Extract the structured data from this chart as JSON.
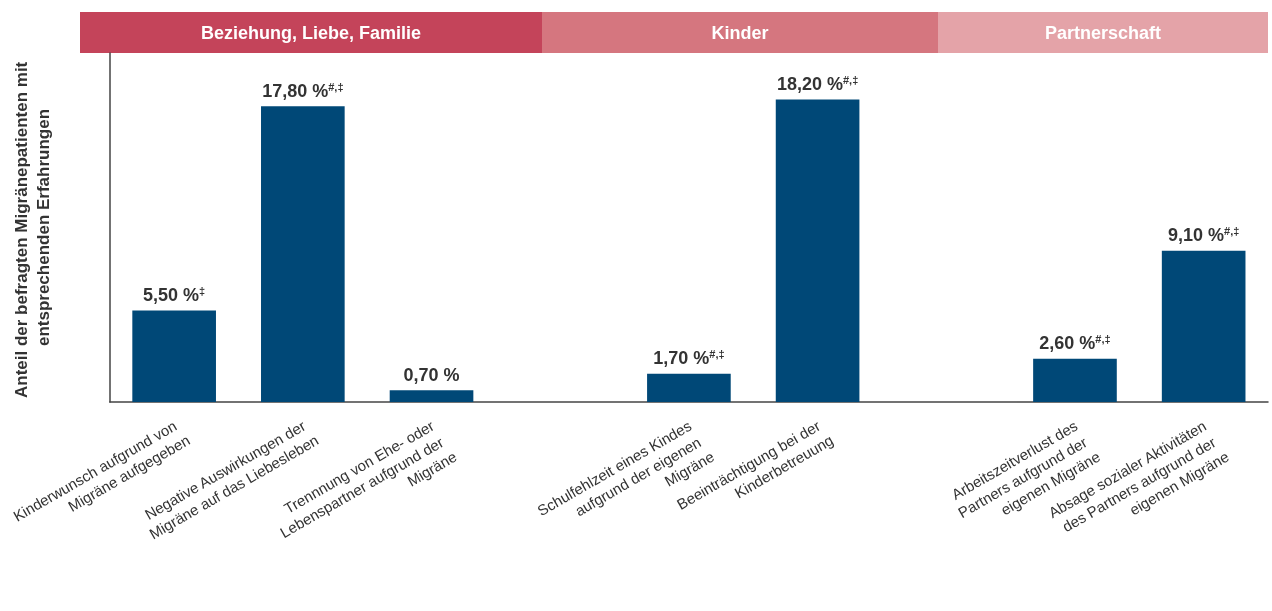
{
  "chart_data": {
    "type": "bar",
    "ylabel": "Anteil der befragten Migränepatienten mit entsprechenden Erfahrungen",
    "categories": [
      "Kinderwunsch aufgrund von Migräne aufgegeben",
      "Negative Auswirkungen der Migräne auf das Liebesleben",
      "Trennnung von Ehe- oder Lebenspartner aufgrund der Migräne",
      null,
      "Schulfehlzeit eines Kindes aufgrund der eigenen Migräne",
      "Beeinträchtigung bei der Kinderbetreuung",
      null,
      "Arbeitszeitverlust des Partners aufgrund der eigenen Migräne",
      "Absage sozialer Aktivitäten des Partners aufgrund der eigenen Migräne"
    ],
    "values": [
      5.5,
      17.8,
      0.7,
      null,
      1.7,
      18.2,
      null,
      2.6,
      9.1
    ],
    "value_labels": [
      "5,50 %$^{‡}$",
      "17,80 %$^{#,‡}$",
      "0,70 %",
      null,
      "1,70 %$^{#,‡}$",
      "18,20 %$^{#,‡}$",
      null,
      "2,60 %$^{#,‡}$",
      "9,10 %$^{#,‡}$"
    ],
    "color": "#004877",
    "annotations": [
      "Beziehung, Liebe, Familie",
      "Kinder",
      "Partnerschaft"
    ],
    "tick_labels": "x",
    "grid": false
  }
}
